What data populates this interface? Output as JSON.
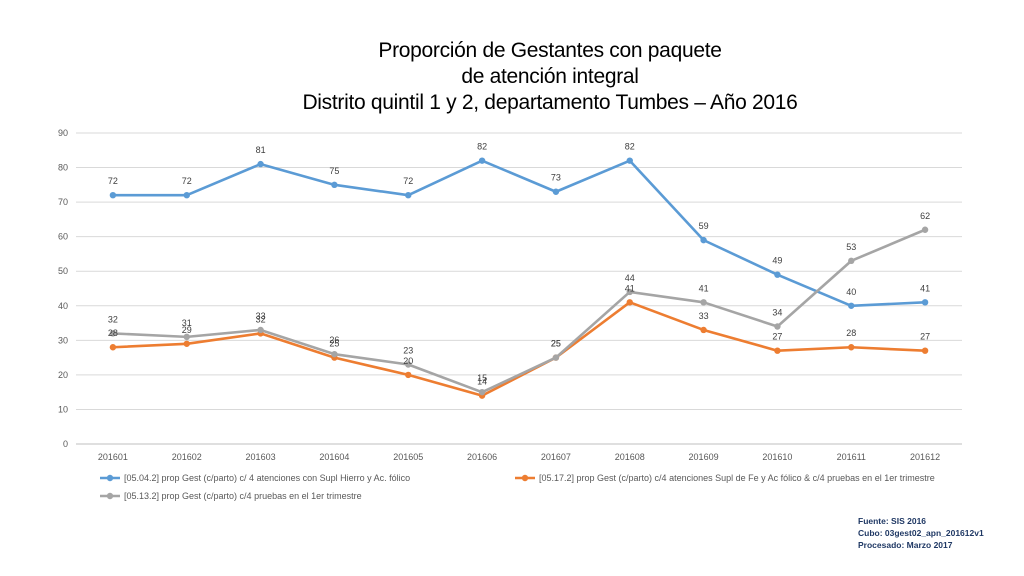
{
  "chart_data": {
    "type": "line",
    "title_lines": [
      "Proporción de Gestantes con paquete",
      "de atención integral",
      "Distrito quintil 1 y 2, departamento Tumbes – Año 2016"
    ],
    "categories": [
      "201601",
      "201602",
      "201603",
      "201604",
      "201605",
      "201606",
      "201607",
      "201608",
      "201609",
      "201610",
      "201611",
      "201612"
    ],
    "ylim": [
      0,
      90
    ],
    "yticks": [
      0,
      10,
      20,
      30,
      40,
      50,
      60,
      70,
      80,
      90
    ],
    "grid": true,
    "legend_position": "bottom",
    "series": [
      {
        "name": "[05.04.2] prop Gest (c/parto) c/ 4 atenciones con Supl Hierro y Ac. fólico",
        "color": "#5b9bd5",
        "values": [
          72,
          72,
          81,
          75,
          72,
          82,
          73,
          82,
          59,
          49,
          40,
          41
        ]
      },
      {
        "name": "[05.17.2] prop Gest (c/parto) c/4 atenciones Supl de Fe y Ac fólico & c/4 pruebas en el 1er trimestre",
        "color": "#ed7d31",
        "values": [
          28,
          29,
          32,
          25,
          20,
          14,
          25,
          41,
          33,
          27,
          28,
          27
        ]
      },
      {
        "name": "[05.13.2] prop Gest (c/parto) c/4 pruebas en el 1er trimestre",
        "color": "#a5a5a5",
        "values": [
          32,
          31,
          33,
          26,
          23,
          15,
          25,
          44,
          41,
          34,
          53,
          62
        ]
      }
    ]
  },
  "footnote": {
    "source": "Fuente: SIS 2016",
    "cube": "Cubo: 03gest02_apn_201612v1",
    "processed": "Procesado: Marzo 2017"
  }
}
